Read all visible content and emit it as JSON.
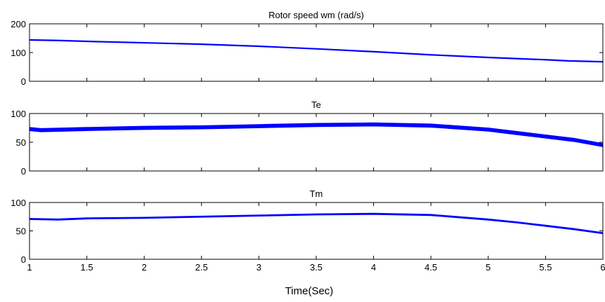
{
  "figure": {
    "xlabel": "Time(Sec)",
    "line_color": "#0000ff"
  },
  "chart_data": [
    {
      "type": "line",
      "title": "Rotor speed wm (rad/s)",
      "xlabel": "",
      "ylabel": "",
      "xlim": [
        1,
        6
      ],
      "ylim": [
        0,
        200
      ],
      "xticks": [
        1,
        1.5,
        2,
        2.5,
        3,
        3.5,
        4,
        4.5,
        5,
        5.5,
        6
      ],
      "xtick_labels": [],
      "yticks": [
        0,
        100,
        200
      ],
      "ytick_labels": [
        "0",
        "100",
        "200"
      ],
      "grid": false,
      "series": [
        {
          "color": "#0000ff",
          "band": 1.5,
          "x": [
            1,
            1.25,
            1.5,
            2,
            2.5,
            3,
            3.5,
            4,
            4.5,
            5,
            5.5,
            5.7,
            6
          ],
          "y": [
            144,
            142,
            139,
            134,
            129,
            122,
            113,
            103,
            92,
            83,
            75,
            71,
            68
          ]
        }
      ]
    },
    {
      "type": "line",
      "title": "Te",
      "xlabel": "",
      "ylabel": "",
      "xlim": [
        1,
        6
      ],
      "ylim": [
        0,
        100
      ],
      "xticks": [
        1,
        1.5,
        2,
        2.5,
        3,
        3.5,
        4,
        4.5,
        5,
        5.5,
        6
      ],
      "xtick_labels": [],
      "yticks": [
        0,
        50,
        100
      ],
      "ytick_labels": [
        "0",
        "50",
        "100"
      ],
      "grid": false,
      "series": [
        {
          "color": "#0000ff",
          "band": 5,
          "x": [
            1,
            1.1,
            1.5,
            2,
            2.5,
            3,
            3.5,
            4,
            4.5,
            5,
            5.25,
            5.5,
            5.75,
            6
          ],
          "y": [
            73,
            71,
            73,
            75,
            76,
            78,
            80,
            81,
            79,
            72,
            66,
            60,
            54,
            45
          ]
        }
      ]
    },
    {
      "type": "line",
      "title": "Tm",
      "xlabel": "",
      "ylabel": "",
      "xlim": [
        1,
        6
      ],
      "ylim": [
        0,
        100
      ],
      "xticks": [
        1,
        1.5,
        2,
        2.5,
        3,
        3.5,
        4,
        4.5,
        5,
        5.5,
        6
      ],
      "xtick_labels": [
        "1",
        "1.5",
        "2",
        "2.5",
        "3",
        "3.5",
        "4",
        "4.5",
        "5",
        "5.5",
        "6"
      ],
      "yticks": [
        0,
        50,
        100
      ],
      "ytick_labels": [
        "0",
        "50",
        "100"
      ],
      "grid": false,
      "series": [
        {
          "color": "#0000ff",
          "band": 1.5,
          "x": [
            1,
            1.25,
            1.5,
            2,
            2.5,
            3,
            3.5,
            4,
            4.5,
            5,
            5.25,
            5.5,
            5.75,
            6
          ],
          "y": [
            71,
            70,
            72,
            73,
            75,
            77,
            79,
            80,
            78,
            70,
            65,
            59,
            53,
            46
          ]
        }
      ]
    }
  ]
}
